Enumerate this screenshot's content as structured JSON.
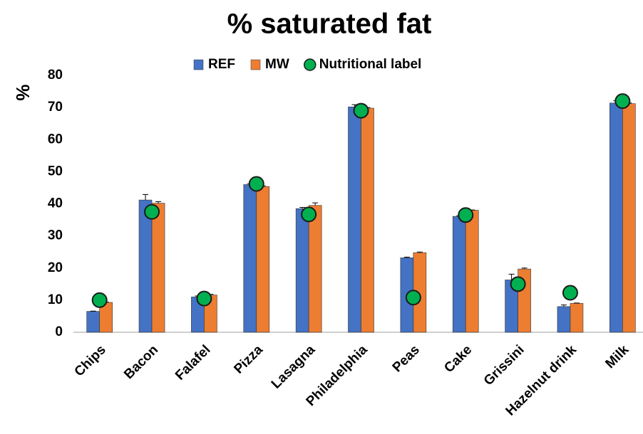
{
  "chart_data": {
    "type": "bar",
    "title": "% saturated fat",
    "y_label": "%",
    "categories": [
      "Chips",
      "Bacon",
      "Falafel",
      "Pizza",
      "Lasagna",
      "Philadelphia",
      "Peas",
      "Cake",
      "Grissini",
      "Hazelnut drink",
      "Milk"
    ],
    "series": [
      {
        "name": "REF",
        "color": "#4472c4",
        "values": [
          6.5,
          41.2,
          11,
          46,
          38.5,
          70.2,
          23.2,
          36.1,
          16.3,
          8,
          71.4
        ],
        "errors": [
          0.1,
          1.7,
          0.3,
          0.3,
          0.4,
          0.7,
          0.2,
          0.2,
          1.8,
          0.5,
          0.7
        ]
      },
      {
        "name": "MW",
        "color": "#ed7d31",
        "values": [
          9.3,
          40.2,
          11.6,
          45.4,
          39.5,
          69.8,
          24.8,
          38,
          19.7,
          9,
          71.2
        ],
        "errors": [
          0.1,
          0.5,
          0.2,
          0.2,
          0.8,
          0.2,
          0.2,
          0.1,
          0.3,
          0.1,
          0.2
        ]
      },
      {
        "name": "Nutritional label",
        "color": "#00b050",
        "marker": "circle",
        "values": [
          10,
          37.5,
          10.5,
          46.2,
          36.7,
          69,
          10.8,
          36.5,
          15,
          12.3,
          72
        ]
      }
    ],
    "ylim": [
      0,
      80
    ],
    "yticks": [
      0,
      10,
      20,
      30,
      40,
      50,
      60,
      70,
      80
    ],
    "grid": false
  }
}
